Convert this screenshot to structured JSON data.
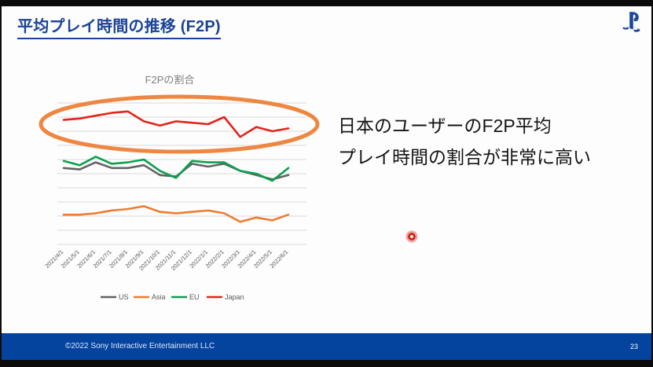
{
  "slide": {
    "title": "平均プレイ時間の推移 (F2P)",
    "insight_text": [
      "日本のユーザーのF2P平均",
      "プレイ時間の割合が非常に高い"
    ],
    "footer": {
      "copyright": "©2022 Sony Interactive Entertainment LLC",
      "page_number": "23"
    }
  },
  "colors": {
    "title_blue": "#1b4297",
    "footer_blue": "#04439e",
    "annotation_orange": "#ED7D31",
    "laser_red": "#e03127",
    "gridline_gray": "#d9d9d9",
    "axis_text_gray": "#595959",
    "chart_title_gray": "#7f7f7f"
  },
  "icons": {
    "logo": "playstation-logo"
  },
  "chart_data": {
    "type": "line",
    "title": "F2Pの割合",
    "x": [
      "2021/4/1",
      "2021/5/1",
      "2021/6/1",
      "2021/7/1",
      "2021/8/1",
      "2021/9/1",
      "2021/10/1",
      "2021/11/1",
      "2021/12/1",
      "2022/1/1",
      "2022/2/1",
      "2022/3/1",
      "2022/4/1",
      "2022/5/1",
      "2022/6/1"
    ],
    "series": [
      {
        "name": "US",
        "color": "#636363",
        "values": [
          54,
          53,
          58,
          54,
          54,
          56,
          49,
          48,
          57,
          55,
          57,
          52,
          49,
          46,
          49
        ]
      },
      {
        "name": "Asia",
        "color": "#ED7D31",
        "values": [
          21,
          21,
          22,
          24,
          25,
          27,
          23,
          22,
          23,
          24,
          22,
          16,
          19,
          17,
          21
        ]
      },
      {
        "name": "EU",
        "color": "#0ca04f",
        "values": [
          59,
          56,
          62,
          57,
          58,
          60,
          52,
          47,
          59,
          58,
          58,
          52,
          50,
          45,
          54
        ]
      },
      {
        "name": "Japan",
        "color": "#e0251b",
        "values": [
          88,
          89,
          91,
          93,
          94,
          87,
          84,
          87,
          86,
          85,
          90,
          76,
          83,
          80,
          82
        ]
      }
    ],
    "ylim": [
      0,
      100
    ],
    "grid": true,
    "y_axis_labels_visible": false,
    "legend_position": "bottom",
    "annotation": {
      "type": "ellipse",
      "target": "Japan",
      "color": "#ED7D31"
    }
  }
}
